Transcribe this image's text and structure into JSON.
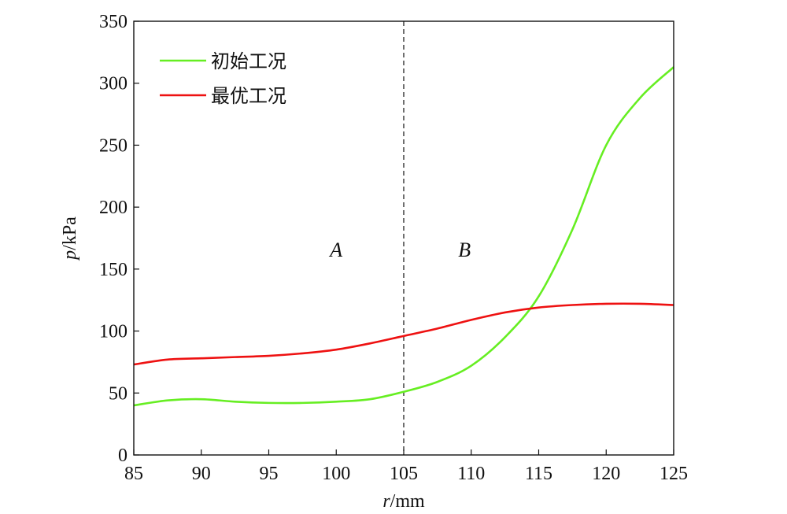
{
  "chart_data": {
    "type": "line",
    "title": "",
    "xlabel": "r/mm",
    "xlabel_var": "r",
    "xlabel_unit": "/mm",
    "ylabel": "p/kPa",
    "ylabel_var": "p",
    "ylabel_unit": "/kPa",
    "xlim": [
      85,
      125
    ],
    "ylim": [
      0,
      350
    ],
    "xticks": [
      85,
      90,
      95,
      100,
      105,
      110,
      115,
      120,
      125
    ],
    "yticks": [
      0,
      50,
      100,
      150,
      200,
      250,
      300,
      350
    ],
    "grid": false,
    "legend_position": "top-left",
    "divider": {
      "x": 105,
      "style": "dashed"
    },
    "regions": [
      {
        "label": "A",
        "x": 100,
        "y": 160
      },
      {
        "label": "B",
        "x": 109.5,
        "y": 160
      }
    ],
    "series": [
      {
        "name": "初始工况",
        "color": "#66ee22",
        "x": [
          85,
          87.5,
          90,
          92.5,
          95,
          97.5,
          100,
          102.5,
          105,
          107.5,
          110,
          112.5,
          115,
          117.5,
          120,
          122.5,
          125
        ],
        "y": [
          40,
          44,
          45,
          43,
          42,
          42,
          43,
          45,
          51,
          59,
          72,
          95,
          128,
          182,
          250,
          288,
          313
        ]
      },
      {
        "name": "最优工况",
        "color": "#ee1111",
        "x": [
          85,
          87.5,
          90,
          92.5,
          95,
          97.5,
          100,
          102.5,
          105,
          107.5,
          110,
          112.5,
          115,
          117.5,
          120,
          122.5,
          125
        ],
        "y": [
          73,
          77,
          78,
          79,
          80,
          82,
          85,
          90,
          96,
          102,
          109,
          115,
          119,
          121,
          122,
          122,
          121
        ]
      }
    ]
  }
}
